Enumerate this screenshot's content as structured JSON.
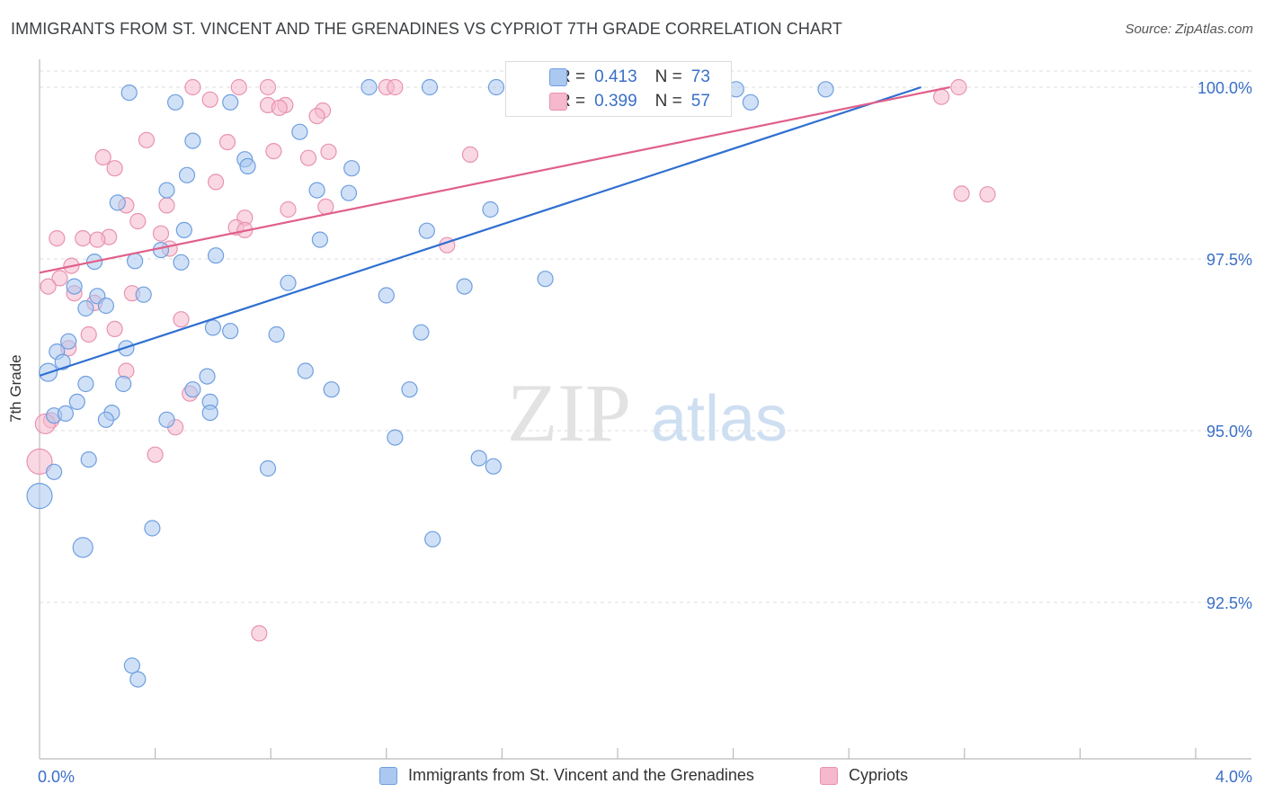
{
  "title": "IMMIGRANTS FROM ST. VINCENT AND THE GRENADINES VS CYPRIOT 7TH GRADE CORRELATION CHART",
  "source": "Source: ZipAtlas.com",
  "watermark": {
    "zip": "ZIP",
    "atlas": "atlas"
  },
  "colors": {
    "blue_fill": "#aac8f0",
    "blue_stroke": "#6f9fe0",
    "blue_line": "#2f6fd0",
    "pink_fill": "#f5b8cc",
    "pink_stroke": "#e893b0",
    "pink_line": "#e0608a",
    "tick_label": "#3a6fc8",
    "grid": "#dcdcdc"
  },
  "stats": {
    "blue": {
      "r_label": "R =",
      "r_value": "0.413",
      "n_label": "N =",
      "n_value": "73"
    },
    "pink": {
      "r_label": "R =",
      "r_value": "0.399",
      "n_label": "N =",
      "n_value": "57"
    }
  },
  "legend": {
    "blue_label": "Immigrants from St. Vincent and the Grenadines",
    "pink_label": "Cypriots"
  },
  "chart_data": {
    "type": "scatter",
    "title": "IMMIGRANTS FROM ST. VINCENT AND THE GRENADINES VS CYPRIOT 7TH GRADE CORRELATION CHART",
    "xlabel": "",
    "ylabel": "7th Grade",
    "xlim": [
      0.0,
      4.0
    ],
    "ylim": [
      90.0,
      100.2
    ],
    "x_tick_labels": [
      "0.0%",
      "4.0%"
    ],
    "y_ticks": [
      92.5,
      95.0,
      97.5,
      100.0
    ],
    "y_tick_labels": [
      "92.5%",
      "95.0%",
      "97.5%",
      "100.0%"
    ],
    "grid": true,
    "legend_position": "bottom",
    "series": [
      {
        "name": "Immigrants from St. Vincent and the Grenadines",
        "color": "#aac8f0",
        "trendline": {
          "x": [
            0.0,
            3.05
          ],
          "y": [
            95.8,
            100.0
          ]
        },
        "points": [
          [
            0.31,
            99.92
          ],
          [
            0.47,
            99.78
          ],
          [
            0.66,
            99.78
          ],
          [
            1.14,
            100.0
          ],
          [
            1.35,
            100.0
          ],
          [
            1.58,
            100.0
          ],
          [
            2.41,
            99.97
          ],
          [
            2.46,
            99.78
          ],
          [
            2.72,
            99.97
          ],
          [
            0.53,
            99.22
          ],
          [
            0.71,
            98.95
          ],
          [
            0.9,
            99.35
          ],
          [
            0.72,
            98.85
          ],
          [
            0.51,
            98.72
          ],
          [
            0.44,
            98.5
          ],
          [
            0.96,
            98.5
          ],
          [
            1.08,
            98.82
          ],
          [
            1.07,
            98.46
          ],
          [
            0.27,
            98.32
          ],
          [
            1.56,
            98.22
          ],
          [
            0.5,
            97.92
          ],
          [
            1.34,
            97.91
          ],
          [
            0.97,
            97.78
          ],
          [
            0.42,
            97.63
          ],
          [
            0.61,
            97.55
          ],
          [
            0.33,
            97.47
          ],
          [
            0.49,
            97.45
          ],
          [
            0.19,
            97.46
          ],
          [
            0.86,
            97.15
          ],
          [
            1.75,
            97.21
          ],
          [
            1.47,
            97.1
          ],
          [
            0.12,
            97.1
          ],
          [
            0.36,
            96.98
          ],
          [
            0.2,
            96.96
          ],
          [
            1.2,
            96.97
          ],
          [
            0.23,
            96.82
          ],
          [
            0.16,
            96.78
          ],
          [
            0.6,
            96.5
          ],
          [
            0.66,
            96.45
          ],
          [
            0.82,
            96.4
          ],
          [
            1.32,
            96.43
          ],
          [
            0.3,
            96.2
          ],
          [
            0.1,
            96.3
          ],
          [
            0.06,
            96.15
          ],
          [
            0.08,
            96.0
          ],
          [
            0.03,
            95.85
          ],
          [
            0.92,
            95.87
          ],
          [
            0.58,
            95.79
          ],
          [
            0.16,
            95.68
          ],
          [
            0.29,
            95.68
          ],
          [
            1.01,
            95.6
          ],
          [
            1.28,
            95.6
          ],
          [
            0.53,
            95.6
          ],
          [
            0.13,
            95.42
          ],
          [
            0.59,
            95.42
          ],
          [
            0.05,
            95.22
          ],
          [
            0.09,
            95.25
          ],
          [
            0.25,
            95.26
          ],
          [
            0.59,
            95.26
          ],
          [
            0.44,
            95.16
          ],
          [
            0.23,
            95.16
          ],
          [
            1.23,
            94.9
          ],
          [
            0.17,
            94.58
          ],
          [
            1.52,
            94.6
          ],
          [
            1.57,
            94.48
          ],
          [
            0.79,
            94.45
          ],
          [
            0.05,
            94.4
          ],
          [
            0.0,
            94.05
          ],
          [
            0.39,
            93.58
          ],
          [
            1.36,
            93.42
          ],
          [
            0.15,
            93.3
          ],
          [
            0.32,
            91.58
          ],
          [
            0.34,
            91.38
          ]
        ]
      },
      {
        "name": "Cypriots",
        "color": "#f5b8cc",
        "trendline": {
          "x": [
            0.0,
            3.15
          ],
          "y": [
            97.3,
            100.0
          ]
        },
        "points": [
          [
            0.53,
            100.0
          ],
          [
            0.69,
            100.0
          ],
          [
            0.79,
            100.0
          ],
          [
            1.2,
            100.0
          ],
          [
            1.23,
            100.0
          ],
          [
            3.18,
            100.0
          ],
          [
            0.59,
            99.82
          ],
          [
            0.79,
            99.74
          ],
          [
            0.85,
            99.74
          ],
          [
            0.83,
            99.7
          ],
          [
            0.98,
            99.66
          ],
          [
            0.96,
            99.58
          ],
          [
            3.12,
            99.86
          ],
          [
            0.37,
            99.23
          ],
          [
            0.65,
            99.2
          ],
          [
            0.81,
            99.07
          ],
          [
            1.0,
            99.06
          ],
          [
            0.93,
            98.97
          ],
          [
            0.22,
            98.98
          ],
          [
            1.49,
            99.02
          ],
          [
            0.26,
            98.82
          ],
          [
            0.61,
            98.62
          ],
          [
            0.3,
            98.28
          ],
          [
            0.44,
            98.28
          ],
          [
            0.86,
            98.22
          ],
          [
            0.99,
            98.26
          ],
          [
            3.19,
            98.45
          ],
          [
            3.28,
            98.44
          ],
          [
            0.71,
            98.1
          ],
          [
            0.34,
            98.05
          ],
          [
            0.68,
            97.96
          ],
          [
            0.71,
            97.92
          ],
          [
            0.42,
            97.87
          ],
          [
            0.06,
            97.8
          ],
          [
            0.15,
            97.8
          ],
          [
            0.24,
            97.82
          ],
          [
            0.2,
            97.78
          ],
          [
            0.45,
            97.65
          ],
          [
            1.41,
            97.7
          ],
          [
            0.11,
            97.4
          ],
          [
            0.07,
            97.22
          ],
          [
            0.03,
            97.1
          ],
          [
            0.12,
            97.0
          ],
          [
            0.32,
            97.0
          ],
          [
            0.19,
            96.86
          ],
          [
            0.49,
            96.62
          ],
          [
            0.26,
            96.48
          ],
          [
            0.17,
            96.4
          ],
          [
            0.1,
            96.2
          ],
          [
            0.3,
            95.87
          ],
          [
            0.52,
            95.54
          ],
          [
            0.04,
            95.15
          ],
          [
            0.47,
            95.05
          ],
          [
            0.0,
            94.55
          ],
          [
            0.4,
            94.65
          ],
          [
            0.76,
            92.05
          ],
          [
            0.02,
            95.1
          ]
        ]
      }
    ]
  }
}
